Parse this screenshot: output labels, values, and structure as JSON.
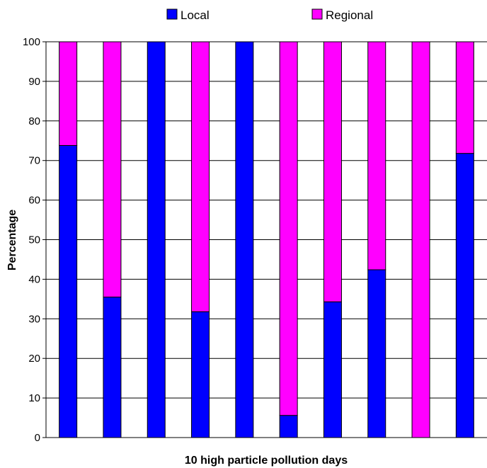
{
  "chart_data": {
    "type": "bar",
    "stacked": true,
    "title": "",
    "xlabel": "10 high particle pollution days",
    "ylabel": "Percentage",
    "ylim": [
      0,
      100
    ],
    "yticks": [
      0,
      10,
      20,
      30,
      40,
      50,
      60,
      70,
      80,
      90,
      100
    ],
    "grid": true,
    "legend_position": "top-center",
    "categories": [
      "",
      "",
      "",
      "",
      "",
      "",
      "",
      "",
      "",
      ""
    ],
    "series": [
      {
        "name": "Local",
        "color": "#0000ff",
        "values": [
          73.8,
          35.5,
          100,
          31.8,
          100,
          5.6,
          34.3,
          42.4,
          0,
          71.8
        ]
      },
      {
        "name": "Regional",
        "color": "#ff00ff",
        "values": [
          26.2,
          64.5,
          0,
          68.2,
          0,
          94.4,
          65.7,
          57.6,
          100,
          28.2
        ]
      }
    ]
  }
}
